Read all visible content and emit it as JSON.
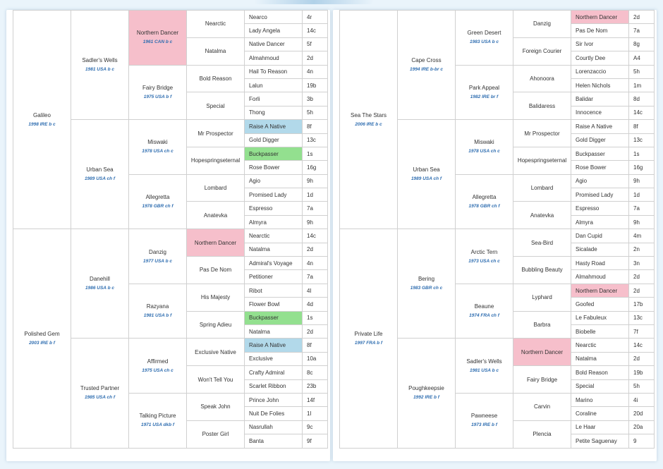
{
  "pedigrees": [
    {
      "sire": {
        "name": "Galileo",
        "info": "1998 IRE b c"
      },
      "sire_sire": {
        "name": "Sadler's Wells",
        "info": "1981 USA b c"
      },
      "sire_sire_sire": {
        "name": "Northern Dancer",
        "info": "1961 CAN b c"
      },
      "sire_sire_dam": {
        "name": "Fairy Bridge",
        "info": "1975 USA b f"
      },
      "sire_dam": {
        "name": "Urban Sea",
        "info": "1989 USA ch f"
      },
      "sire_dam_sire": {
        "name": "Miswaki",
        "info": "1978 USA ch c"
      },
      "sire_dam_dam": {
        "name": "Allegretta",
        "info": "1978 GBR ch f"
      },
      "dam": {
        "name": "Polished Gem",
        "info": "2003 IRE b f"
      },
      "dam_sire": {
        "name": "Danehill",
        "info": "1986 USA b c"
      },
      "dam_sire_sire": {
        "name": "Danzig",
        "info": "1977 USA b c"
      },
      "dam_sire_dam": {
        "name": "Razyana",
        "info": "1981 USA b f"
      },
      "dam_dam": {
        "name": "Trusted Partner",
        "info": "1985 USA ch f"
      },
      "dam_dam_sire": {
        "name": "Affirmed",
        "info": "1975 USA ch c"
      },
      "dam_dam_dam": {
        "name": "Talking Picture",
        "info": "1971 USA dkb f"
      },
      "gen4": [
        "Nearctic",
        "Natalma",
        "Bold Reason",
        "Special",
        "Mr Prospector",
        "Hopespringseternal",
        "Lombard",
        "Anatevka",
        "Northern Dancer",
        "Pas De Nom",
        "His Majesty",
        "Spring Adieu",
        "Exclusive Native",
        "Won't Tell You",
        "Speak John",
        "Poster Girl"
      ],
      "gen5": [
        {
          "name": "Nearco",
          "fig": "4r"
        },
        {
          "name": "Lady Angela",
          "fig": "14c"
        },
        {
          "name": "Native Dancer",
          "fig": "5f"
        },
        {
          "name": "Almahmoud",
          "fig": "2d"
        },
        {
          "name": "Hail To Reason",
          "fig": "4n"
        },
        {
          "name": "Lalun",
          "fig": "19b"
        },
        {
          "name": "Forli",
          "fig": "3b"
        },
        {
          "name": "Thong",
          "fig": "5h"
        },
        {
          "name": "Raise A Native",
          "fig": "8f"
        },
        {
          "name": "Gold Digger",
          "fig": "13c"
        },
        {
          "name": "Buckpasser",
          "fig": "1s"
        },
        {
          "name": "Rose Bower",
          "fig": "16g"
        },
        {
          "name": "Agio",
          "fig": "9h"
        },
        {
          "name": "Promised Lady",
          "fig": "1d"
        },
        {
          "name": "Espresso",
          "fig": "7a"
        },
        {
          "name": "Almyra",
          "fig": "9h"
        },
        {
          "name": "Nearctic",
          "fig": "14c"
        },
        {
          "name": "Natalma",
          "fig": "2d"
        },
        {
          "name": "Admiral's Voyage",
          "fig": "4n"
        },
        {
          "name": "Petitioner",
          "fig": "7a"
        },
        {
          "name": "Ribot",
          "fig": "4l"
        },
        {
          "name": "Flower Bowl",
          "fig": "4d"
        },
        {
          "name": "Buckpasser",
          "fig": "1s"
        },
        {
          "name": "Natalma",
          "fig": "2d"
        },
        {
          "name": "Raise A Native",
          "fig": "8f"
        },
        {
          "name": "Exclusive",
          "fig": "10a"
        },
        {
          "name": "Crafty Admiral",
          "fig": "8c"
        },
        {
          "name": "Scarlet Ribbon",
          "fig": "23b"
        },
        {
          "name": "Prince John",
          "fig": "14f"
        },
        {
          "name": "Nuit De Folies",
          "fig": "1l"
        },
        {
          "name": "Nasrullah",
          "fig": "9c"
        },
        {
          "name": "Banta",
          "fig": "9f"
        }
      ]
    },
    {
      "sire": {
        "name": "Sea The Stars",
        "info": "2006 IRE b c"
      },
      "sire_sire": {
        "name": "Cape Cross",
        "info": "1994 IRE b-br c"
      },
      "sire_sire_sire": {
        "name": "Green Desert",
        "info": "1983 USA b c"
      },
      "sire_sire_dam": {
        "name": "Park Appeal",
        "info": "1982 IRE br f"
      },
      "sire_dam": {
        "name": "Urban Sea",
        "info": "1989 USA ch f"
      },
      "sire_dam_sire": {
        "name": "Miswaki",
        "info": "1978 USA ch c"
      },
      "sire_dam_dam": {
        "name": "Allegretta",
        "info": "1978 GBR ch f"
      },
      "dam": {
        "name": "Private Life",
        "info": "1997 FRA b f"
      },
      "dam_sire": {
        "name": "Bering",
        "info": "1983 GBR ch c"
      },
      "dam_sire_sire": {
        "name": "Arctic Tern",
        "info": "1973 USA ch c"
      },
      "dam_sire_dam": {
        "name": "Beaune",
        "info": "1974 FRA ch f"
      },
      "dam_dam": {
        "name": "Poughkeepsie",
        "info": "1992 IRE b f"
      },
      "dam_dam_sire": {
        "name": "Sadler's Wells",
        "info": "1981 USA b c"
      },
      "dam_dam_dam": {
        "name": "Pawneese",
        "info": "1973 IRE b f"
      },
      "gen4": [
        "Danzig",
        "Foreign Courier",
        "Ahonoora",
        "Balidaress",
        "Mr Prospector",
        "Hopespringseternal",
        "Lombard",
        "Anatevka",
        "Sea-Bird",
        "Bubbling Beauty",
        "Lyphard",
        "Barbra",
        "Northern Dancer",
        "Fairy Bridge",
        "Carvin",
        "Plencia"
      ],
      "gen5": [
        {
          "name": "Northern Dancer",
          "fig": "2d"
        },
        {
          "name": "Pas De Nom",
          "fig": "7a"
        },
        {
          "name": "Sir Ivor",
          "fig": "8g"
        },
        {
          "name": "Courtly Dee",
          "fig": "A4"
        },
        {
          "name": "Lorenzaccio",
          "fig": "5h"
        },
        {
          "name": "Helen Nichols",
          "fig": "1m"
        },
        {
          "name": "Balidar",
          "fig": "8d"
        },
        {
          "name": "Innocence",
          "fig": "14c"
        },
        {
          "name": "Raise A Native",
          "fig": "8f"
        },
        {
          "name": "Gold Digger",
          "fig": "13c"
        },
        {
          "name": "Buckpasser",
          "fig": "1s"
        },
        {
          "name": "Rose Bower",
          "fig": "16g"
        },
        {
          "name": "Agio",
          "fig": "9h"
        },
        {
          "name": "Promised Lady",
          "fig": "1d"
        },
        {
          "name": "Espresso",
          "fig": "7a"
        },
        {
          "name": "Almyra",
          "fig": "9h"
        },
        {
          "name": "Dan Cupid",
          "fig": "4m"
        },
        {
          "name": "Sicalade",
          "fig": "2n"
        },
        {
          "name": "Hasty Road",
          "fig": "3n"
        },
        {
          "name": "Almahmoud",
          "fig": "2d"
        },
        {
          "name": "Northern Dancer",
          "fig": "2d"
        },
        {
          "name": "Goofed",
          "fig": "17b"
        },
        {
          "name": "Le Fabuleux",
          "fig": "13c"
        },
        {
          "name": "Biobelle",
          "fig": "7f"
        },
        {
          "name": "Nearctic",
          "fig": "14c"
        },
        {
          "name": "Natalma",
          "fig": "2d"
        },
        {
          "name": "Bold Reason",
          "fig": "19b"
        },
        {
          "name": "Special",
          "fig": "5h"
        },
        {
          "name": "Marino",
          "fig": "4i"
        },
        {
          "name": "Coraline",
          "fig": "20d"
        },
        {
          "name": "Le Haar",
          "fig": "20a"
        },
        {
          "name": "Petite Saguenay",
          "fig": "9"
        }
      ]
    }
  ],
  "highlight_colors": {
    "pink": "#f6bfcb",
    "blue": "#b2d9ea",
    "green": "#93e08f"
  }
}
